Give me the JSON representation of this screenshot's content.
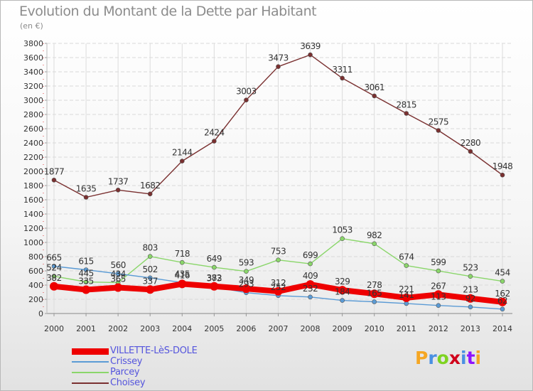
{
  "title": "Evolution du Montant de la Dette par Habitant",
  "unit": "(en €)",
  "logo": "Proxiti",
  "logo_colors": [
    "#f5a623",
    "#4a90e2",
    "#7ed321",
    "#d0021b",
    "#4a90e2",
    "#9013fe",
    "#f5a623"
  ],
  "chart_data": {
    "type": "line",
    "title": "Evolution du Montant de la Dette par Habitant",
    "ylabel": "(en €)",
    "xlabel": "",
    "ylim": [
      0,
      3800
    ],
    "yticks": [
      0,
      200,
      400,
      600,
      800,
      1000,
      1200,
      1400,
      1600,
      1800,
      2000,
      2200,
      2400,
      2600,
      2800,
      3000,
      3200,
      3400,
      3600,
      3800
    ],
    "x": [
      "2000",
      "2001",
      "2002",
      "2003",
      "2004",
      "2005",
      "2006",
      "2007",
      "2008",
      "2009",
      "2010",
      "2011",
      "2012",
      "2013",
      "2014"
    ],
    "grid": true,
    "legend_position": "bottom-left",
    "series": [
      {
        "name": "Choisey",
        "color": "#7a3030",
        "values": [
          1877,
          1635,
          1737,
          1682,
          2144,
          2424,
          3003,
          3473,
          3639,
          3311,
          3061,
          2815,
          2575,
          2280,
          1948
        ],
        "labels": [
          "1877",
          "1635",
          "1737",
          "1682",
          "2144",
          "2424",
          "3003",
          "3473",
          "3639",
          "3311",
          "3061",
          "2815",
          "2575",
          "2280",
          "1948"
        ]
      },
      {
        "name": "Parcey",
        "color": "#8ad66a",
        "values": [
          524,
          445,
          434,
          803,
          718,
          649,
          593,
          753,
          699,
          1053,
          982,
          674,
          599,
          523,
          454
        ],
        "labels": [
          "524",
          "445",
          "434",
          "803",
          "718",
          "649",
          "593",
          "753",
          "699",
          "1053",
          "982",
          "674",
          "599",
          "523",
          "454"
        ]
      },
      {
        "name": "Crissey",
        "color": "#5b9bd5",
        "values": [
          665,
          615,
          560,
          502,
          435,
          373,
          293,
          252,
          232,
          184,
          165,
          141,
          113,
          92,
          62
        ],
        "labels": [
          "665",
          "615",
          "560",
          "502",
          "435",
          "373",
          "293",
          "252",
          "232",
          "184",
          "165",
          "141",
          "113",
          "92",
          "62"
        ]
      },
      {
        "name": "VILLETTE-LèS-DOLE",
        "color": "#ee0000",
        "values": [
          382,
          335,
          365,
          337,
          416,
          382,
          349,
          312,
          409,
          329,
          278,
          221,
          267,
          213,
          162
        ],
        "labels": [
          "382",
          "335",
          "365",
          "337",
          "416",
          "382",
          "349",
          "312",
          "409",
          "329",
          "278",
          "221",
          "267",
          "213",
          "162"
        ]
      }
    ]
  },
  "legend": [
    {
      "label": "VILLETTE-LèS-DOLE",
      "color": "#ee0000",
      "thickness": 9
    },
    {
      "label": "Crissey",
      "color": "#5b9bd5",
      "thickness": 2
    },
    {
      "label": "Parcey",
      "color": "#8ad66a",
      "thickness": 2
    },
    {
      "label": "Choisey",
      "color": "#7a3030",
      "thickness": 2
    }
  ]
}
